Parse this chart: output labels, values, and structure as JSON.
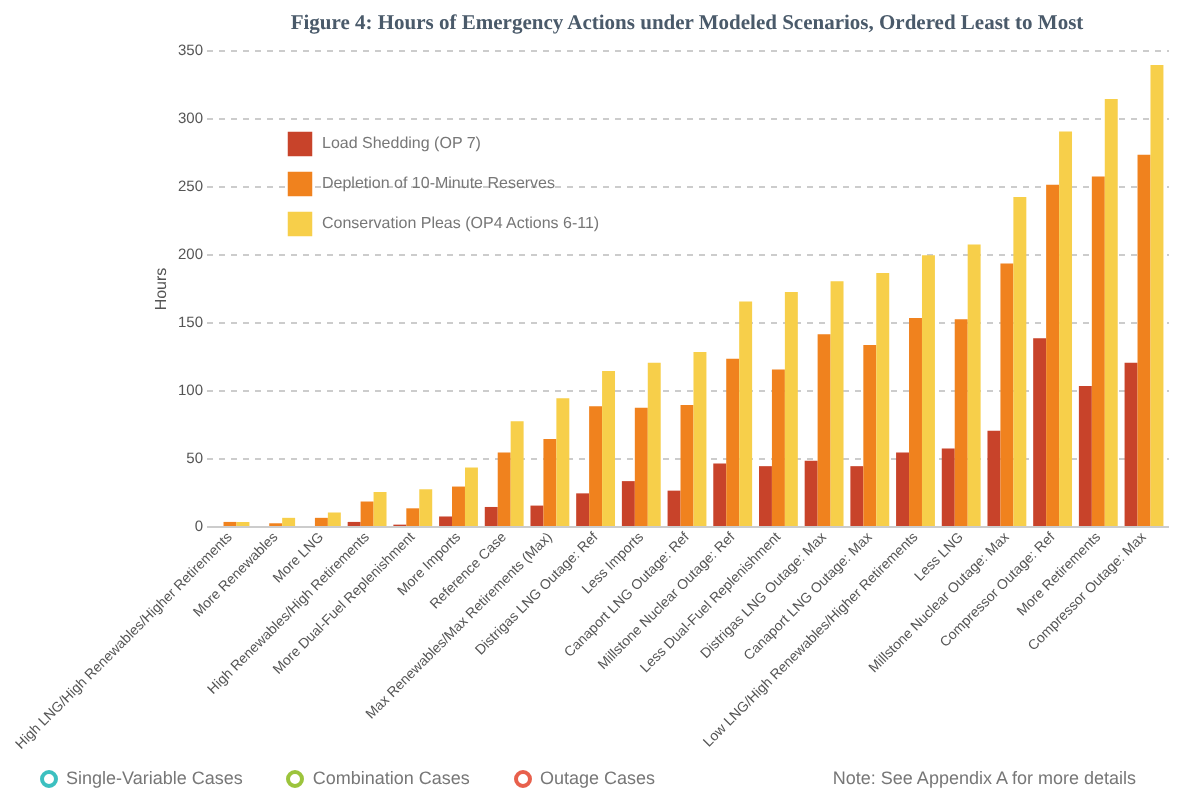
{
  "chart_data": {
    "type": "bar",
    "title": "Figure 4: Hours of Emergency Actions under Modeled Scenarios, Ordered Least to Most",
    "ylabel": "Hours",
    "categories": [
      "High LNG/High Renewables/Higher Retirements",
      "More Renewables",
      "More LNG",
      "High Renewables/High Retirements",
      "More Dual-Fuel Replenishment",
      "More Imports",
      "Reference Case",
      "Max Renewables/Max Retirements (Max)",
      "Distrigas LNG Outage: Ref",
      "Less Imports",
      "Canaport LNG Outage: Ref",
      "Millstone Nuclear Outage: Ref",
      "Less Dual-Fuel Replenishment",
      "Distrigas LNG Outage: Max",
      "Canaport LNG Outage: Max",
      "Low LNG/High Renewables/Higher Retirements",
      "Less LNG",
      "Millstone Nuclear Outage: Max",
      "Compressor Outage: Ref",
      "More Retirements",
      "Compressor Outage: Max"
    ],
    "series": [
      {
        "name": "Load Shedding (OP 7)",
        "color": "#c8432a",
        "values": [
          0,
          0,
          0,
          3,
          1,
          7,
          14,
          15,
          24,
          33,
          26,
          46,
          44,
          48,
          44,
          54,
          57,
          70,
          138,
          103,
          120
        ]
      },
      {
        "name": "Depletion of 10-Minute Reserves",
        "color": "#f0821e",
        "values": [
          3,
          2,
          6,
          18,
          13,
          29,
          54,
          64,
          88,
          87,
          89,
          123,
          115,
          141,
          133,
          153,
          152,
          193,
          251,
          257,
          273
        ]
      },
      {
        "name": "Conservation Pleas (OP4 Actions 6-11)",
        "color": "#f7cf4a",
        "values": [
          3,
          6,
          10,
          25,
          27,
          43,
          77,
          94,
          114,
          120,
          128,
          165,
          172,
          180,
          186,
          199,
          207,
          242,
          290,
          314,
          339
        ]
      }
    ],
    "ylim": [
      0,
      350
    ],
    "yticks": [
      0,
      50,
      100,
      150,
      200,
      250,
      300,
      350
    ],
    "grid": "y",
    "legend": "top left",
    "annotations": [
      "Single-Variable Cases",
      "Combination Cases",
      "Outage Cases",
      "Note: See Appendix A for more details"
    ]
  }
}
